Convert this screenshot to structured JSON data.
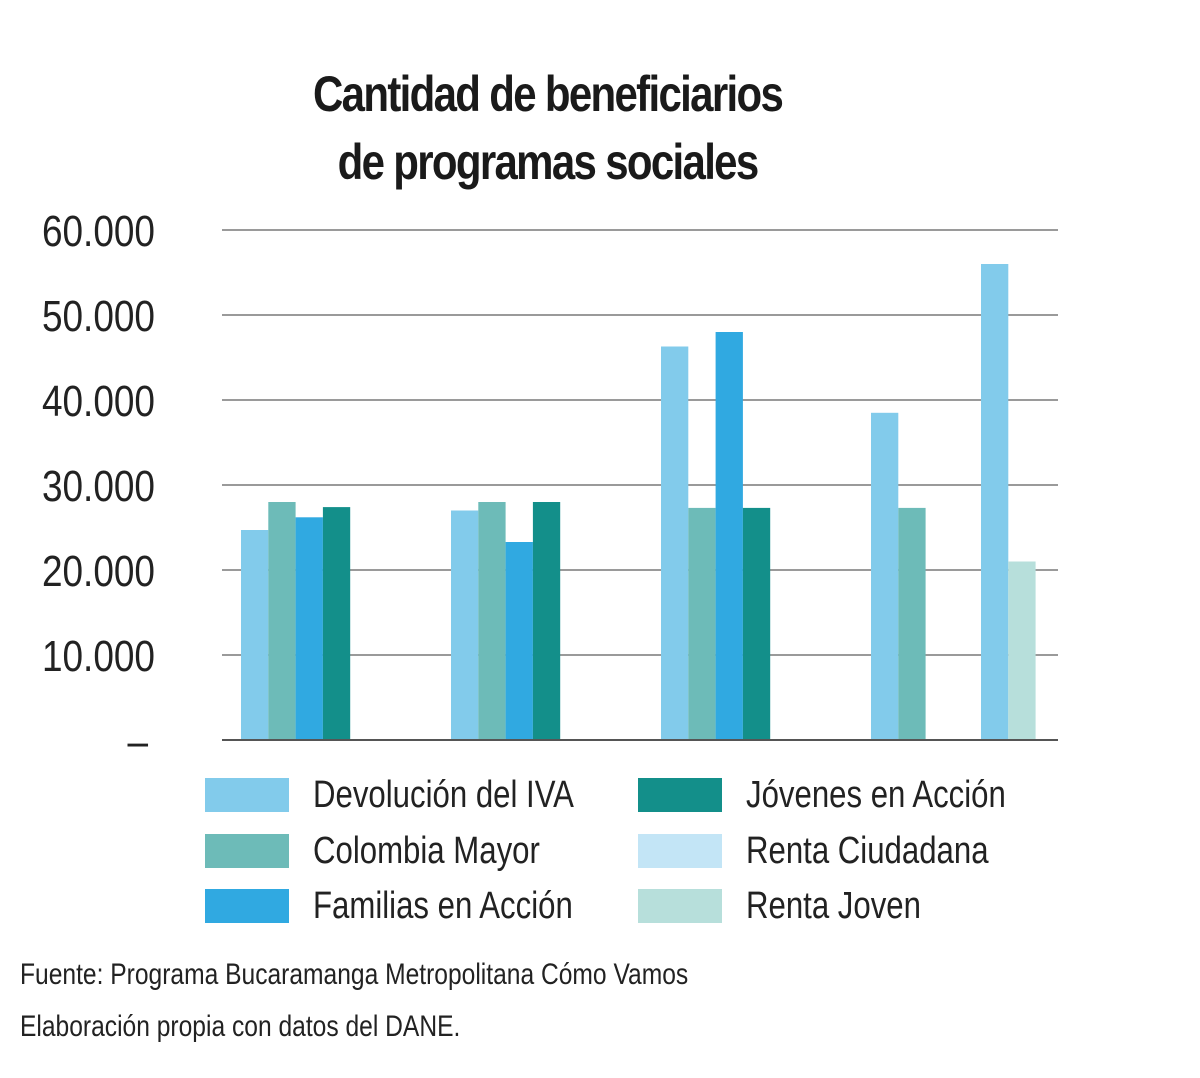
{
  "title_line1": "Cantidad de beneficiarios",
  "title_line2": "de programas sociales",
  "chart_data": {
    "type": "bar",
    "title": "Cantidad de beneficiarios de programas sociales",
    "xlabel": "",
    "ylabel": "",
    "ylim": [
      0,
      60000
    ],
    "ytick_labels": [
      "–",
      "10.000",
      "20.000",
      "30.000",
      "40.000",
      "50.000",
      "60.000"
    ],
    "grid": true,
    "legend_position": "bottom",
    "categories": [
      "",
      "",
      "",
      "",
      ""
    ],
    "series": [
      {
        "name": "Devolución del IVA",
        "color": "#82cbeb",
        "values": [
          24700,
          27000,
          46300,
          38500,
          56000
        ]
      },
      {
        "name": "Colombia Mayor",
        "color": "#6dbbb8",
        "values": [
          28000,
          28000,
          27300,
          27300,
          null
        ]
      },
      {
        "name": "Familias en Acción",
        "color": "#30a9e1",
        "values": [
          26200,
          23300,
          48000,
          null,
          null
        ]
      },
      {
        "name": "Jóvenes en Acción",
        "color": "#138f8a",
        "values": [
          27400,
          28000,
          27300,
          null,
          null
        ]
      },
      {
        "name": "Renta Ciudadana",
        "color": "#c3e5f6",
        "values": [
          null,
          null,
          null,
          null,
          null
        ]
      },
      {
        "name": "Renta Joven",
        "color": "#b7dfdb",
        "values": [
          null,
          null,
          null,
          null,
          21000
        ]
      }
    ]
  },
  "legend": [
    {
      "label": "Devolución del IVA",
      "color": "#82cbeb"
    },
    {
      "label": "Colombia Mayor",
      "color": "#6dbbb8"
    },
    {
      "label": "Familias en Acción",
      "color": "#30a9e1"
    },
    {
      "label": "Jóvenes en Acción",
      "color": "#138f8a"
    },
    {
      "label": "Renta Ciudadana",
      "color": "#c3e5f6"
    },
    {
      "label": "Renta Joven",
      "color": "#b7dfdb"
    }
  ],
  "source_line1": "Fuente:  Programa Bucaramanga Metropolitana Cómo Vamos",
  "source_line2": "Elaboración propia con datos del DANE."
}
